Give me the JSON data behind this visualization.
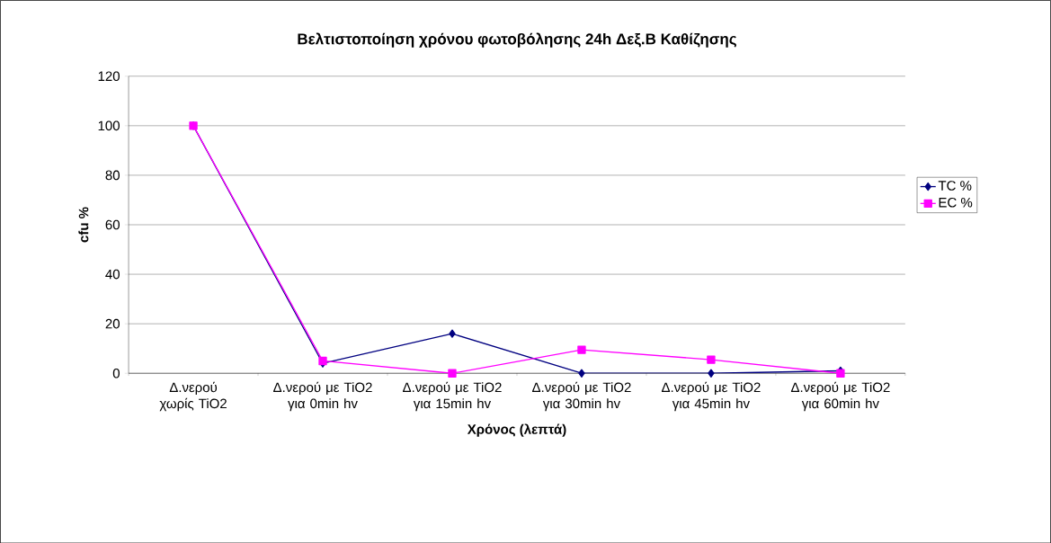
{
  "chart_data": {
    "type": "line",
    "title": "Βελτιστοποίηση χρόνου φωτοβόλησης 24h Δεξ.Β Καθίζησης",
    "xlabel": "Χρόνος (λεπτά)",
    "ylabel": "cfu %",
    "categories": [
      "Δ.νερού χωρίς TiO2",
      "Δ.νερού με TiO2 για 0min hv",
      "Δ.νερού με TiO2 για 15min hv",
      "Δ.νερού με TiO2 για 30min hv",
      "Δ.νερού με TiO2 για 45min hv",
      "Δ.νερού με TiO2 για 60min hv"
    ],
    "series": [
      {
        "name": "TC %",
        "color": "#000080",
        "marker": "diamond",
        "values": [
          100,
          4,
          16,
          0,
          0,
          1
        ]
      },
      {
        "name": "EC %",
        "color": "#ff00ff",
        "marker": "square",
        "values": [
          100,
          5,
          0,
          9.5,
          5.5,
          0
        ]
      }
    ],
    "ylim": [
      0,
      120
    ],
    "yticks": [
      0,
      20,
      40,
      60,
      80,
      100,
      120
    ],
    "grid": "y",
    "legend": "right",
    "line_style": "solid"
  }
}
